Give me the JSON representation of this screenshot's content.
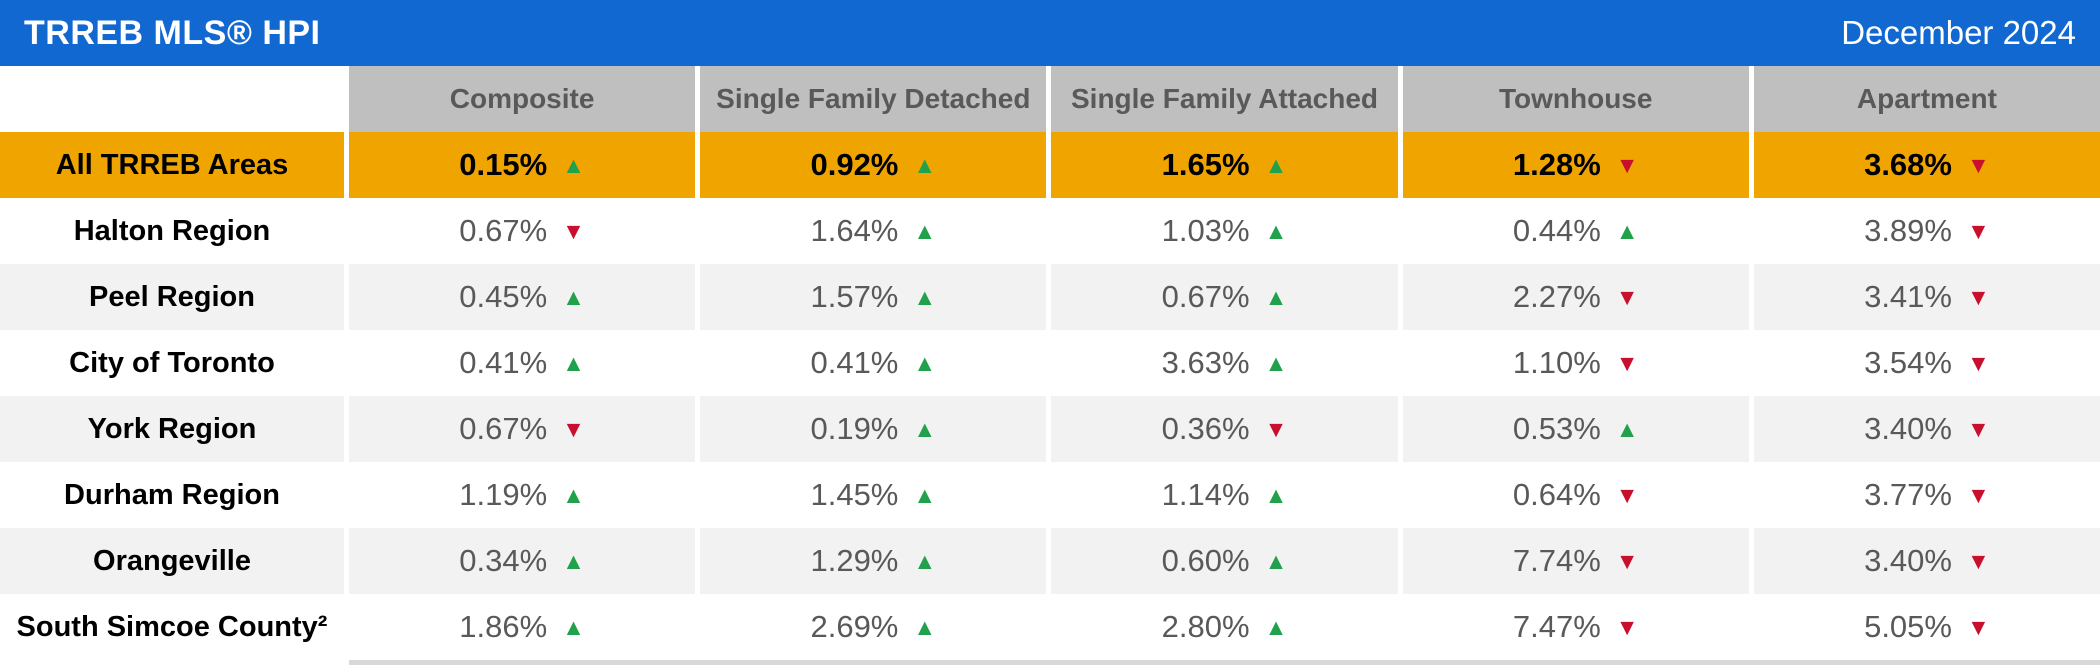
{
  "header": {
    "title": "TRREB MLS® HPI",
    "date": "December 2024"
  },
  "columns": [
    "Composite",
    "Single Family Detached",
    "Single Family Attached",
    "Townhouse",
    "Apartment"
  ],
  "rows": [
    {
      "region": "All TRREB Areas",
      "highlight": true,
      "values": [
        {
          "pct": "0.15%",
          "dir": "up"
        },
        {
          "pct": "0.92%",
          "dir": "up"
        },
        {
          "pct": "1.65%",
          "dir": "up"
        },
        {
          "pct": "1.28%",
          "dir": "down"
        },
        {
          "pct": "3.68%",
          "dir": "down"
        }
      ]
    },
    {
      "region": "Halton Region",
      "highlight": false,
      "values": [
        {
          "pct": "0.67%",
          "dir": "down"
        },
        {
          "pct": "1.64%",
          "dir": "up"
        },
        {
          "pct": "1.03%",
          "dir": "up"
        },
        {
          "pct": "0.44%",
          "dir": "up"
        },
        {
          "pct": "3.89%",
          "dir": "down"
        }
      ]
    },
    {
      "region": "Peel Region",
      "highlight": false,
      "values": [
        {
          "pct": "0.45%",
          "dir": "up"
        },
        {
          "pct": "1.57%",
          "dir": "up"
        },
        {
          "pct": "0.67%",
          "dir": "up"
        },
        {
          "pct": "2.27%",
          "dir": "down"
        },
        {
          "pct": "3.41%",
          "dir": "down"
        }
      ]
    },
    {
      "region": "City of Toronto",
      "highlight": false,
      "values": [
        {
          "pct": "0.41%",
          "dir": "up"
        },
        {
          "pct": "0.41%",
          "dir": "up"
        },
        {
          "pct": "3.63%",
          "dir": "up"
        },
        {
          "pct": "1.10%",
          "dir": "down"
        },
        {
          "pct": "3.54%",
          "dir": "down"
        }
      ]
    },
    {
      "region": "York Region",
      "highlight": false,
      "values": [
        {
          "pct": "0.67%",
          "dir": "down"
        },
        {
          "pct": "0.19%",
          "dir": "up"
        },
        {
          "pct": "0.36%",
          "dir": "down"
        },
        {
          "pct": "0.53%",
          "dir": "up"
        },
        {
          "pct": "3.40%",
          "dir": "down"
        }
      ]
    },
    {
      "region": "Durham Region",
      "highlight": false,
      "values": [
        {
          "pct": "1.19%",
          "dir": "up"
        },
        {
          "pct": "1.45%",
          "dir": "up"
        },
        {
          "pct": "1.14%",
          "dir": "up"
        },
        {
          "pct": "0.64%",
          "dir": "down"
        },
        {
          "pct": "3.77%",
          "dir": "down"
        }
      ]
    },
    {
      "region": "Orangeville",
      "highlight": false,
      "values": [
        {
          "pct": "0.34%",
          "dir": "up"
        },
        {
          "pct": "1.29%",
          "dir": "up"
        },
        {
          "pct": "0.60%",
          "dir": "up"
        },
        {
          "pct": "7.74%",
          "dir": "down"
        },
        {
          "pct": "3.40%",
          "dir": "down"
        }
      ]
    },
    {
      "region": "South Simcoe County²",
      "highlight": false,
      "values": [
        {
          "pct": "1.86%",
          "dir": "up"
        },
        {
          "pct": "2.69%",
          "dir": "up"
        },
        {
          "pct": "2.80%",
          "dir": "up"
        },
        {
          "pct": "7.47%",
          "dir": "down"
        },
        {
          "pct": "5.05%",
          "dir": "down"
        }
      ]
    }
  ],
  "icons": {
    "up": "▲",
    "down": "▼"
  },
  "colors": {
    "header_blue": "#1268D1",
    "highlight_orange": "#F0A400",
    "column_header_gray": "#BFBFBF",
    "text_gray": "#595959",
    "alt_row_gray": "#F2F2F2",
    "up_green": "#21A14B",
    "down_red": "#C8102E",
    "bottom_strip_gray": "#D9D9D9"
  },
  "chart_data": {
    "type": "table",
    "title": "TRREB MLS® HPI",
    "subtitle": "December 2024",
    "unit": "percent change, arrow shows direction (up = increase, down = decrease)",
    "columns": [
      "Composite",
      "Single Family Detached",
      "Single Family Attached",
      "Townhouse",
      "Apartment"
    ],
    "rows": [
      {
        "region": "All TRREB Areas",
        "values": [
          0.15,
          0.92,
          1.65,
          1.28,
          3.68
        ],
        "directions": [
          "up",
          "up",
          "up",
          "down",
          "down"
        ]
      },
      {
        "region": "Halton Region",
        "values": [
          0.67,
          1.64,
          1.03,
          0.44,
          3.89
        ],
        "directions": [
          "down",
          "up",
          "up",
          "up",
          "down"
        ]
      },
      {
        "region": "Peel Region",
        "values": [
          0.45,
          1.57,
          0.67,
          2.27,
          3.41
        ],
        "directions": [
          "up",
          "up",
          "up",
          "down",
          "down"
        ]
      },
      {
        "region": "City of Toronto",
        "values": [
          0.41,
          0.41,
          3.63,
          1.1,
          3.54
        ],
        "directions": [
          "up",
          "up",
          "up",
          "down",
          "down"
        ]
      },
      {
        "region": "York Region",
        "values": [
          0.67,
          0.19,
          0.36,
          0.53,
          3.4
        ],
        "directions": [
          "down",
          "up",
          "down",
          "up",
          "down"
        ]
      },
      {
        "region": "Durham Region",
        "values": [
          1.19,
          1.45,
          1.14,
          0.64,
          3.77
        ],
        "directions": [
          "up",
          "up",
          "up",
          "down",
          "down"
        ]
      },
      {
        "region": "Orangeville",
        "values": [
          0.34,
          1.29,
          0.6,
          7.74,
          3.4
        ],
        "directions": [
          "up",
          "up",
          "up",
          "down",
          "down"
        ]
      },
      {
        "region": "South Simcoe County²",
        "values": [
          1.86,
          2.69,
          2.8,
          7.47,
          5.05
        ],
        "directions": [
          "up",
          "up",
          "up",
          "down",
          "down"
        ]
      }
    ]
  }
}
